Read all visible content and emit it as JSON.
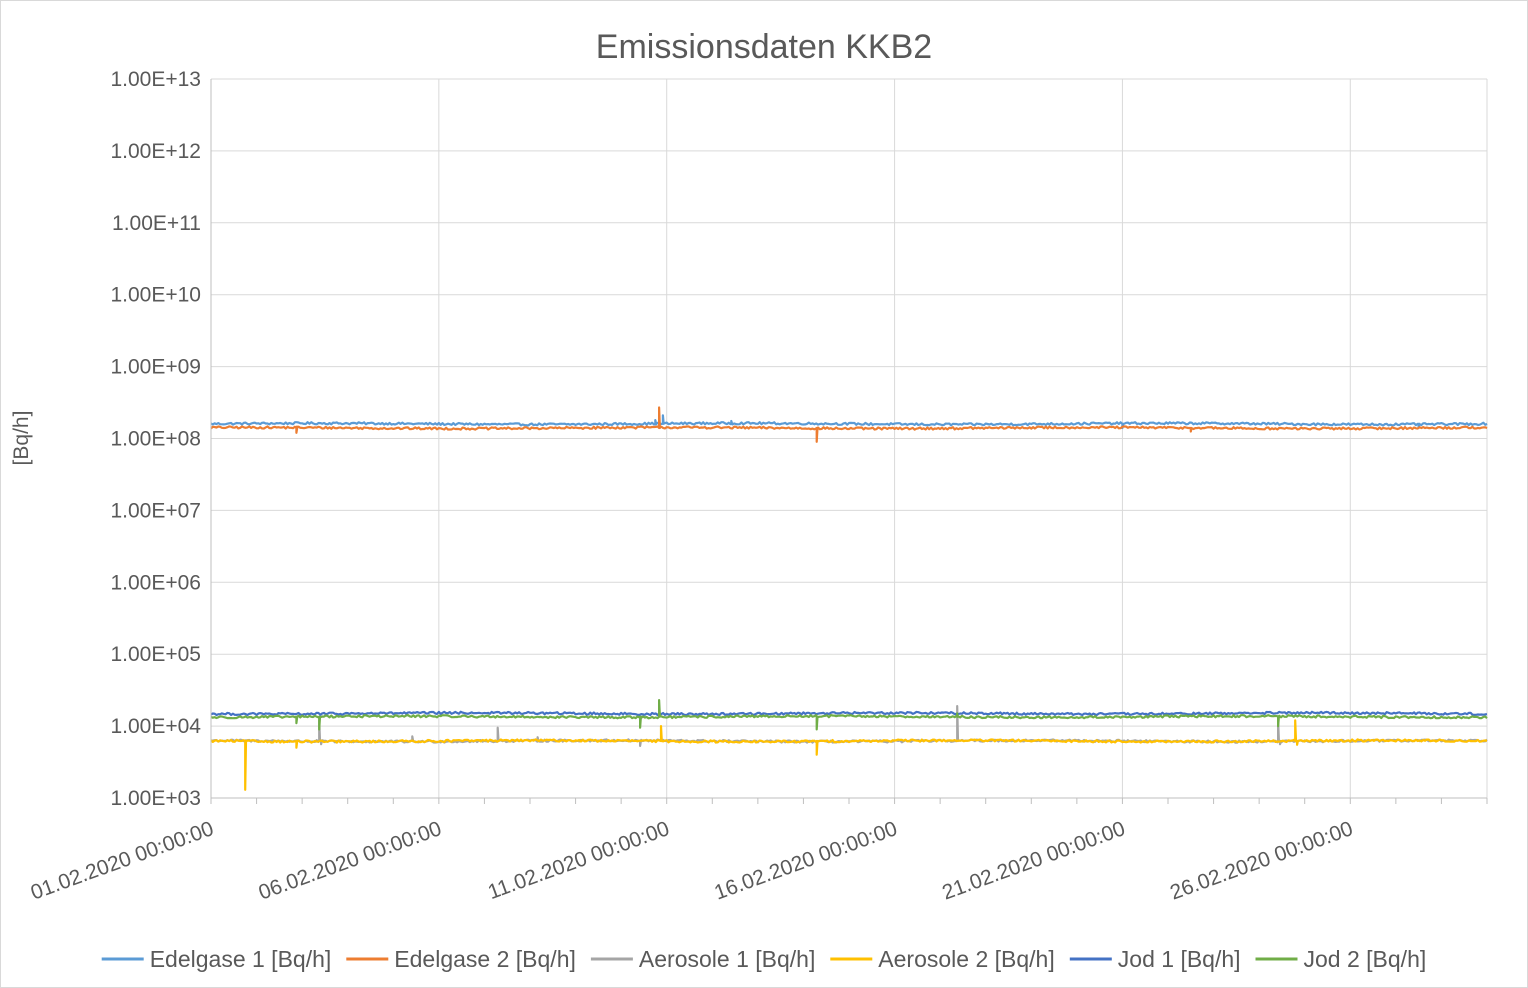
{
  "chart_data": {
    "type": "line",
    "title": "Emissionsdaten KKB2",
    "xlabel": "",
    "ylabel": "[Bq/h]",
    "y_scale": "log",
    "ylim": [
      "1.00E+03",
      "1.00E+13"
    ],
    "y_ticks": [
      "1.00E+13",
      "1.00E+12",
      "1.00E+11",
      "1.00E+10",
      "1.00E+09",
      "1.00E+08",
      "1.00E+07",
      "1.00E+06",
      "1.00E+05",
      "1.00E+04",
      "1.00E+03"
    ],
    "x_range": [
      "01.02.2020 00:00:00",
      "29.02.2020 00:00:00"
    ],
    "x_ticks": [
      "01.02.2020 00:00:00",
      "06.02.2020 00:00:00",
      "11.02.2020 00:00:00",
      "16.02.2020 00:00:00",
      "21.02.2020 00:00:00",
      "26.02.2020 00:00:00"
    ],
    "grid": true,
    "legend_position": "bottom",
    "series": [
      {
        "name": "Edelgase 1 [Bq/h]",
        "color": "#5b9bd5",
        "baseline": 160000000.0,
        "events": [
          {
            "x": "10.02.2020 18:00:00",
            "y": 180000000.0
          },
          {
            "x": "10.02.2020 22:00:00",
            "y": 210000000.0
          },
          {
            "x": "12.02.2020 10:00:00",
            "y": 175000000.0
          },
          {
            "x": "21.02.2020 00:00:00",
            "y": 140000000.0
          },
          {
            "x": "27.02.2020 12:00:00",
            "y": 140000000.0
          }
        ]
      },
      {
        "name": "Edelgase 2 [Bq/h]",
        "color": "#ed7d31",
        "baseline": 140000000.0,
        "events": [
          {
            "x": "02.02.2020 21:00:00",
            "y": 120000000.0
          },
          {
            "x": "10.02.2020 20:00:00",
            "y": 270000000.0
          },
          {
            "x": "14.02.2020 07:00:00",
            "y": 90000000.0
          },
          {
            "x": "22.02.2020 12:00:00",
            "y": 125000000.0
          }
        ]
      },
      {
        "name": "Aerosole 1 [Bq/h]",
        "color": "#a5a5a5",
        "baseline": 6200.0,
        "events": [
          {
            "x": "03.02.2020 09:00:00",
            "y": 12000.0
          },
          {
            "x": "03.02.2020 10:00:00",
            "y": 5600.0
          },
          {
            "x": "05.02.2020 10:00:00",
            "y": 7200.0
          },
          {
            "x": "07.02.2020 07:00:00",
            "y": 9500.0
          },
          {
            "x": "08.02.2020 04:00:00",
            "y": 7000.0
          },
          {
            "x": "10.02.2020 10:00:00",
            "y": 5300.0
          },
          {
            "x": "17.02.2020 09:00:00",
            "y": 19000.0
          },
          {
            "x": "24.02.2020 10:00:00",
            "y": 12000.0
          },
          {
            "x": "24.02.2020 11:00:00",
            "y": 5600.0
          }
        ]
      },
      {
        "name": "Aerosole 2 [Bq/h]",
        "color": "#ffc000",
        "baseline": 6200.0,
        "events": [
          {
            "x": "01.02.2020 18:00:00",
            "y": 1300.0
          },
          {
            "x": "02.02.2020 21:00:00",
            "y": 5000.0
          },
          {
            "x": "10.02.2020 21:00:00",
            "y": 10000.0
          },
          {
            "x": "14.02.2020 07:00:00",
            "y": 4000.0
          },
          {
            "x": "24.02.2020 19:00:00",
            "y": 12000.0
          },
          {
            "x": "24.02.2020 20:00:00",
            "y": 5500.0
          }
        ]
      },
      {
        "name": "Jod 1 [Bq/h]",
        "color": "#4472c4",
        "baseline": 15000.0,
        "events": []
      },
      {
        "name": "Jod 2 [Bq/h]",
        "color": "#70ad47",
        "baseline": 13500.0,
        "events": [
          {
            "x": "02.02.2020 21:00:00",
            "y": 11000.0
          },
          {
            "x": "03.02.2020 09:00:00",
            "y": 9000.0
          },
          {
            "x": "10.02.2020 10:00:00",
            "y": 9500.0
          },
          {
            "x": "10.02.2020 20:00:00",
            "y": 23000.0
          },
          {
            "x": "14.02.2020 07:00:00",
            "y": 9000.0
          },
          {
            "x": "17.02.2020 09:00:00",
            "y": 15000.0
          },
          {
            "x": "24.02.2020 10:00:00",
            "y": 10000.0
          }
        ]
      }
    ]
  }
}
